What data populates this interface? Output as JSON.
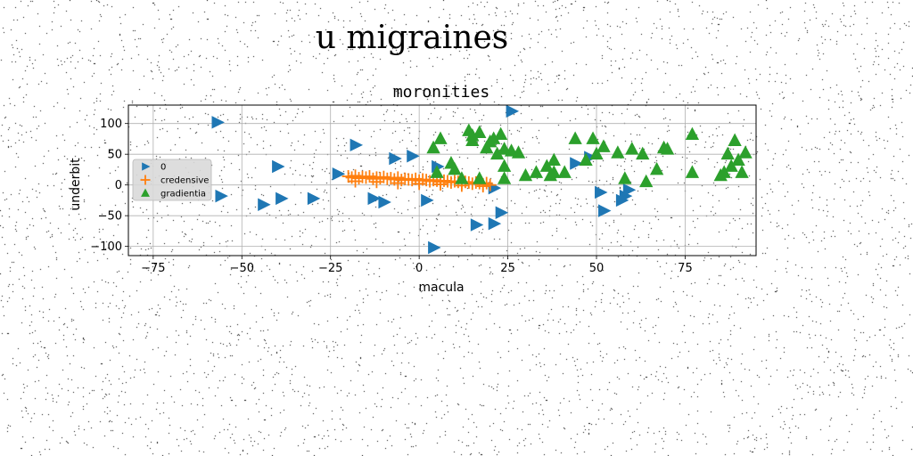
{
  "figure": {
    "suptitle": "u migraines"
  },
  "chart_data": {
    "type": "scatter",
    "title": "moronities",
    "xlabel": "macula",
    "ylabel": "underbit",
    "xlim": [
      -82,
      95
    ],
    "ylim": [
      -115,
      130
    ],
    "xticks": [
      -75,
      -50,
      -25,
      0,
      25,
      50,
      75
    ],
    "yticks": [
      -100,
      -50,
      0,
      50,
      100
    ],
    "grid": true,
    "legend_position": "center-left",
    "series": [
      {
        "name": "0",
        "marker": "triangle-right",
        "color": "#1f77b4",
        "points": [
          [
            -57,
            102
          ],
          [
            -18,
            65
          ],
          [
            -56,
            -18
          ],
          [
            -44,
            -32
          ],
          [
            -39,
            -22
          ],
          [
            -30,
            -22
          ],
          [
            -40,
            30
          ],
          [
            -23,
            18
          ],
          [
            -13,
            -22
          ],
          [
            -10,
            -28
          ],
          [
            -7,
            43
          ],
          [
            -2,
            47
          ],
          [
            2,
            -25
          ],
          [
            4,
            -102
          ],
          [
            5,
            30
          ],
          [
            16,
            -65
          ],
          [
            21,
            -63
          ],
          [
            23,
            -45
          ],
          [
            26,
            120
          ],
          [
            51,
            -12
          ],
          [
            52,
            -42
          ],
          [
            44,
            35
          ],
          [
            48,
            45
          ],
          [
            57,
            -25
          ],
          [
            58,
            -18
          ],
          [
            59,
            -8
          ],
          [
            21,
            -5
          ]
        ]
      },
      {
        "name": "credensive",
        "marker": "plus",
        "color": "#ff7f0e",
        "points": [
          [
            -20,
            14
          ],
          [
            -19,
            12
          ],
          [
            -18,
            15
          ],
          [
            -17,
            11
          ],
          [
            -16,
            13
          ],
          [
            -15,
            12
          ],
          [
            -14,
            14
          ],
          [
            -13,
            10
          ],
          [
            -12,
            12
          ],
          [
            -11,
            11
          ],
          [
            -10,
            13
          ],
          [
            -9,
            10
          ],
          [
            -8,
            11
          ],
          [
            -7,
            9
          ],
          [
            -6,
            12
          ],
          [
            -5,
            8
          ],
          [
            -4,
            10
          ],
          [
            -3,
            9
          ],
          [
            -2,
            8
          ],
          [
            -1,
            10
          ],
          [
            0,
            7
          ],
          [
            1,
            9
          ],
          [
            2,
            8
          ],
          [
            3,
            6
          ],
          [
            4,
            8
          ],
          [
            5,
            7
          ],
          [
            6,
            5
          ],
          [
            7,
            7
          ],
          [
            8,
            6
          ],
          [
            9,
            4
          ],
          [
            10,
            6
          ],
          [
            11,
            5
          ],
          [
            12,
            3
          ],
          [
            13,
            5
          ],
          [
            14,
            4
          ],
          [
            15,
            2
          ],
          [
            16,
            4
          ],
          [
            17,
            3
          ],
          [
            18,
            1
          ],
          [
            19,
            3
          ],
          [
            20,
            0
          ],
          [
            -18,
            6
          ],
          [
            -12,
            5
          ],
          [
            -6,
            3
          ],
          [
            0,
            2
          ],
          [
            6,
            1
          ],
          [
            12,
            -1
          ],
          [
            18,
            -2
          ]
        ]
      },
      {
        "name": "gradientia",
        "marker": "triangle-up",
        "color": "#2ca02c",
        "points": [
          [
            4,
            60
          ],
          [
            6,
            75
          ],
          [
            14,
            88
          ],
          [
            15,
            80
          ],
          [
            15,
            72
          ],
          [
            17,
            85
          ],
          [
            19,
            60
          ],
          [
            20,
            70
          ],
          [
            21,
            75
          ],
          [
            22,
            50
          ],
          [
            23,
            82
          ],
          [
            24,
            58
          ],
          [
            26,
            55
          ],
          [
            28,
            52
          ],
          [
            9,
            35
          ],
          [
            10,
            25
          ],
          [
            12,
            10
          ],
          [
            17,
            10
          ],
          [
            24,
            30
          ],
          [
            24,
            10
          ],
          [
            30,
            15
          ],
          [
            33,
            20
          ],
          [
            36,
            30
          ],
          [
            37,
            15
          ],
          [
            38,
            40
          ],
          [
            38,
            20
          ],
          [
            41,
            20
          ],
          [
            44,
            75
          ],
          [
            47,
            40
          ],
          [
            49,
            75
          ],
          [
            50,
            50
          ],
          [
            52,
            62
          ],
          [
            56,
            52
          ],
          [
            60,
            58
          ],
          [
            63,
            50
          ],
          [
            64,
            5
          ],
          [
            67,
            25
          ],
          [
            69,
            60
          ],
          [
            70,
            58
          ],
          [
            77,
            82
          ],
          [
            77,
            20
          ],
          [
            85,
            15
          ],
          [
            86,
            20
          ],
          [
            87,
            50
          ],
          [
            88,
            30
          ],
          [
            89,
            72
          ],
          [
            90,
            40
          ],
          [
            91,
            20
          ],
          [
            92,
            52
          ],
          [
            5,
            20
          ],
          [
            58,
            10
          ]
        ]
      }
    ]
  }
}
